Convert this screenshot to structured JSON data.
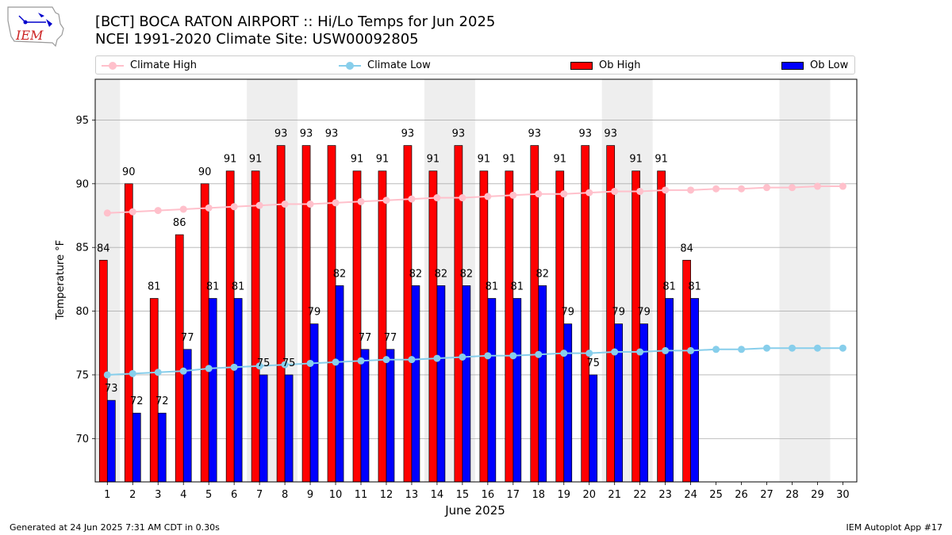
{
  "header": {
    "title_line1": "[BCT] BOCA RATON AIRPORT :: Hi/Lo Temps for Jun 2025",
    "title_line2": "NCEI 1991-2020 Climate Site: USW00092805",
    "logo_text": "IEM"
  },
  "footer": {
    "generated": "Generated at 24 Jun 2025 7:31 AM CDT in 0.30s",
    "app": "IEM Autoplot App #17"
  },
  "colors": {
    "climate_high": "#ffc0cb",
    "climate_low": "#87ceeb",
    "ob_high": "#ff0000",
    "ob_low": "#0000ff",
    "weekend_band": "#eeeeee",
    "grid": "#b0b0b0"
  },
  "chart_data": {
    "type": "bar",
    "xlabel": "June 2025",
    "ylabel": "Temperature °F",
    "ylim": [
      66.6,
      98.2
    ],
    "yticks": [
      70,
      75,
      80,
      85,
      90,
      95
    ],
    "grid": "horizontal",
    "legend_position": "top",
    "days": [
      1,
      2,
      3,
      4,
      5,
      6,
      7,
      8,
      9,
      10,
      11,
      12,
      13,
      14,
      15,
      16,
      17,
      18,
      19,
      20,
      21,
      22,
      23,
      24,
      25,
      26,
      27,
      28,
      29,
      30
    ],
    "weekend_spans": [
      [
        1,
        1
      ],
      [
        7,
        8
      ],
      [
        14,
        15
      ],
      [
        21,
        22
      ],
      [
        28,
        29
      ]
    ],
    "series": [
      {
        "name": "Climate High",
        "type": "line",
        "color": "#ffc0cb",
        "values": [
          87.7,
          87.8,
          87.9,
          88.0,
          88.1,
          88.2,
          88.3,
          88.4,
          88.4,
          88.5,
          88.6,
          88.7,
          88.8,
          88.9,
          88.9,
          89.0,
          89.1,
          89.2,
          89.2,
          89.3,
          89.4,
          89.4,
          89.5,
          89.5,
          89.6,
          89.6,
          89.7,
          89.7,
          89.8,
          89.8
        ]
      },
      {
        "name": "Climate Low",
        "type": "line",
        "color": "#87ceeb",
        "values": [
          75.0,
          75.1,
          75.2,
          75.3,
          75.5,
          75.6,
          75.7,
          75.8,
          75.9,
          76.0,
          76.1,
          76.2,
          76.2,
          76.3,
          76.4,
          76.5,
          76.5,
          76.6,
          76.7,
          76.7,
          76.8,
          76.8,
          76.9,
          76.9,
          77.0,
          77.0,
          77.1,
          77.1,
          77.1,
          77.1
        ]
      },
      {
        "name": "Ob High",
        "type": "bar",
        "color": "#ff0000",
        "values": [
          84,
          90,
          81,
          86,
          90,
          91,
          91,
          93,
          93,
          93,
          91,
          91,
          93,
          91,
          93,
          91,
          91,
          93,
          91,
          93,
          93,
          91,
          91,
          84
        ]
      },
      {
        "name": "Ob Low",
        "type": "bar",
        "color": "#0000ff",
        "values": [
          73,
          72,
          72,
          77,
          81,
          81,
          75,
          75,
          79,
          82,
          77,
          77,
          82,
          82,
          82,
          81,
          81,
          82,
          79,
          75,
          79,
          79,
          81,
          81
        ]
      }
    ]
  }
}
